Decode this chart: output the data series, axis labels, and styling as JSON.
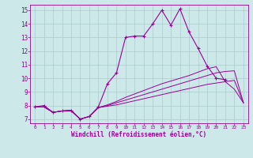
{
  "bg_color": "#cce8e8",
  "line_color": "#990099",
  "grid_color": "#aacccc",
  "xlabel": "Windchill (Refroidissement éolien,°C)",
  "xlim": [
    -0.5,
    23.5
  ],
  "ylim": [
    6.7,
    15.4
  ],
  "yticks": [
    7,
    8,
    9,
    10,
    11,
    12,
    13,
    14,
    15
  ],
  "xticks": [
    0,
    1,
    2,
    3,
    4,
    5,
    6,
    7,
    8,
    9,
    10,
    11,
    12,
    13,
    14,
    15,
    16,
    17,
    18,
    19,
    20,
    21,
    22,
    23
  ],
  "series": [
    {
      "x": [
        0,
        1,
        2,
        3,
        4,
        5,
        6,
        7,
        8,
        9,
        10,
        11,
        12,
        13,
        14,
        15,
        16,
        17,
        18,
        19,
        20,
        21
      ],
      "y": [
        7.9,
        8.0,
        7.5,
        7.6,
        7.6,
        7.0,
        7.2,
        7.9,
        9.6,
        10.4,
        13.0,
        13.1,
        13.1,
        14.0,
        15.0,
        13.9,
        15.1,
        13.4,
        12.2,
        10.9,
        10.0,
        9.9
      ],
      "marker": true
    },
    {
      "x": [
        0,
        1,
        2,
        3,
        4,
        5,
        6,
        7,
        8,
        9,
        10,
        11,
        12,
        13,
        14,
        15,
        16,
        17,
        18,
        19,
        20,
        21,
        22,
        23
      ],
      "y": [
        7.9,
        7.9,
        7.5,
        7.6,
        7.65,
        7.0,
        7.2,
        7.85,
        7.95,
        8.05,
        8.2,
        8.35,
        8.5,
        8.65,
        8.8,
        8.95,
        9.1,
        9.25,
        9.4,
        9.55,
        9.65,
        9.75,
        9.85,
        8.2
      ],
      "marker": false
    },
    {
      "x": [
        0,
        1,
        2,
        3,
        4,
        5,
        6,
        7,
        8,
        9,
        10,
        11,
        12,
        13,
        14,
        15,
        16,
        17,
        18,
        19,
        20,
        21,
        22,
        23
      ],
      "y": [
        7.9,
        7.9,
        7.5,
        7.6,
        7.65,
        7.0,
        7.2,
        7.85,
        8.0,
        8.2,
        8.4,
        8.6,
        8.8,
        9.0,
        9.2,
        9.4,
        9.6,
        9.8,
        10.0,
        10.2,
        10.4,
        10.5,
        10.55,
        8.2
      ],
      "marker": false
    },
    {
      "x": [
        0,
        1,
        2,
        3,
        4,
        5,
        6,
        7,
        8,
        9,
        10,
        11,
        12,
        13,
        14,
        15,
        16,
        17,
        18,
        19,
        20,
        21,
        22,
        23
      ],
      "y": [
        7.9,
        7.9,
        7.5,
        7.6,
        7.65,
        7.0,
        7.2,
        7.85,
        8.05,
        8.3,
        8.6,
        8.85,
        9.1,
        9.35,
        9.6,
        9.8,
        10.0,
        10.2,
        10.45,
        10.7,
        10.85,
        9.75,
        9.2,
        8.2
      ],
      "marker": false
    }
  ]
}
